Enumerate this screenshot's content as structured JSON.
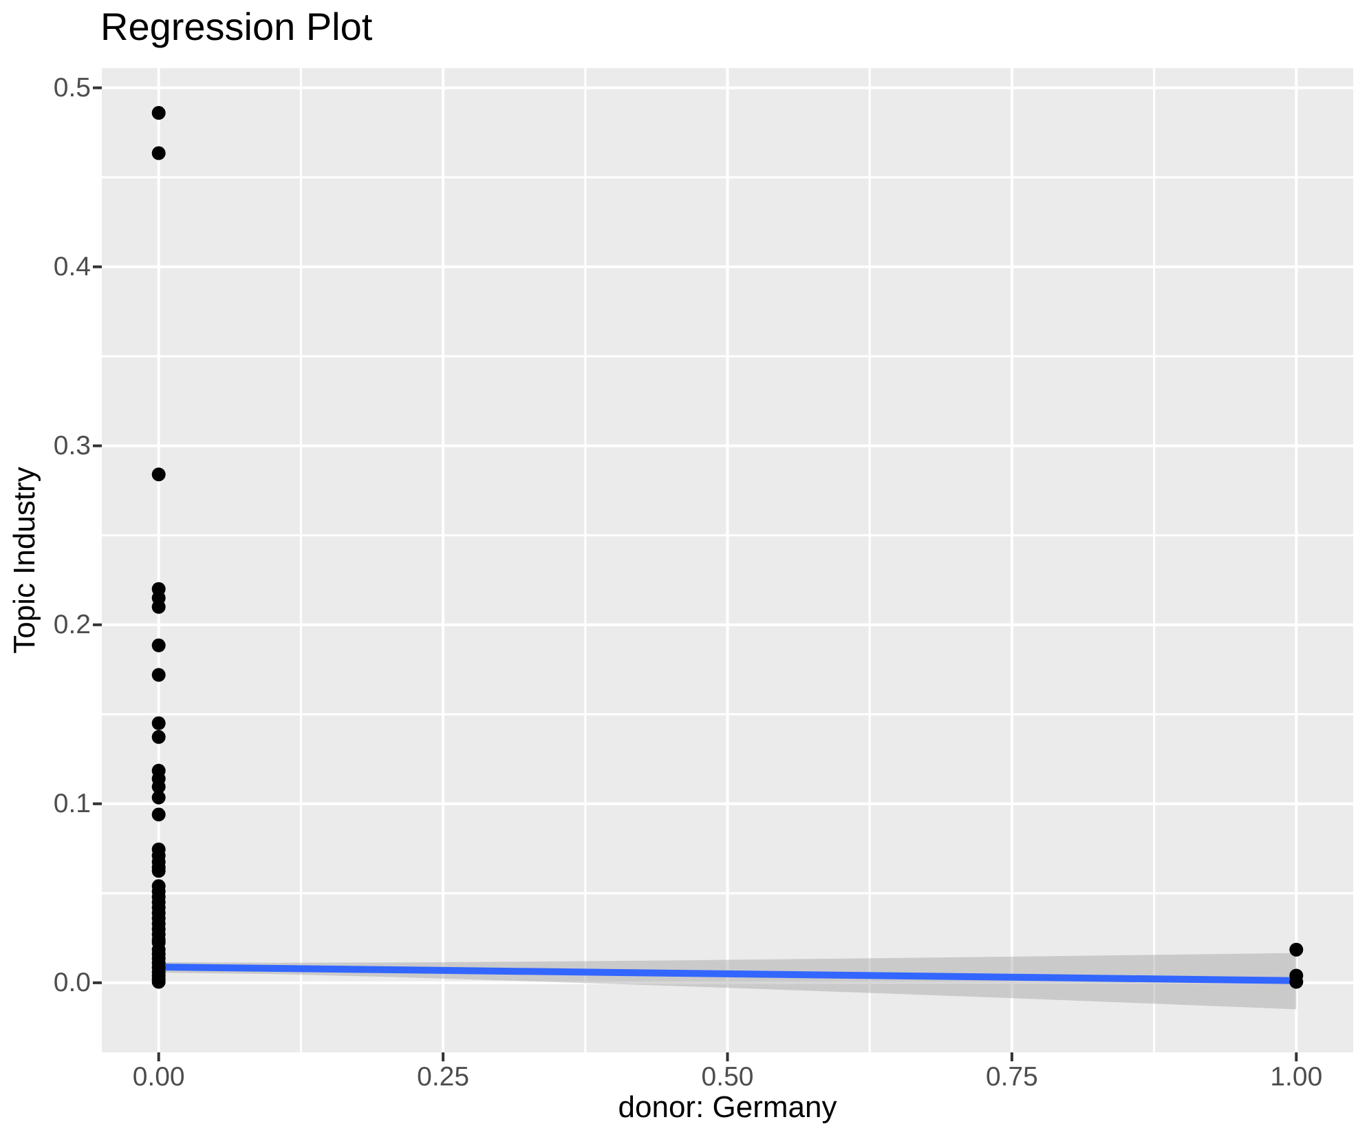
{
  "title": "Regression Plot",
  "chart_data": {
    "type": "scatter",
    "title": "Regression Plot",
    "xlabel": "donor: Germany",
    "ylabel": "Topic Industry",
    "xlim": [
      -0.05,
      1.05
    ],
    "ylim": [
      -0.0389,
      0.511
    ],
    "grid": "major and minor, white on gray panel",
    "legend": "none",
    "x_ticks": {
      "values": [
        0,
        0.25,
        0.5,
        0.75,
        1.0
      ],
      "labels": [
        "0.00",
        "0.25",
        "0.50",
        "0.75",
        "1.00"
      ]
    },
    "y_ticks": {
      "values": [
        0,
        0.1,
        0.2,
        0.3,
        0.4,
        0.5
      ],
      "labels": [
        "0.0",
        "0.1",
        "0.2",
        "0.3",
        "0.4",
        "0.5"
      ]
    },
    "x_minor_ticks": [
      0.125,
      0.375,
      0.625,
      0.875
    ],
    "y_minor_ticks": [
      0.05,
      0.15,
      0.25,
      0.35,
      0.45
    ],
    "points": [
      [
        0,
        0.486
      ],
      [
        0,
        0.4635
      ],
      [
        0,
        0.284
      ],
      [
        0,
        0.22
      ],
      [
        0,
        0.215
      ],
      [
        0,
        0.21
      ],
      [
        0,
        0.1885
      ],
      [
        0,
        0.172
      ],
      [
        0,
        0.145
      ],
      [
        0,
        0.1373
      ],
      [
        0,
        0.1185
      ],
      [
        0,
        0.114
      ],
      [
        0,
        0.1095
      ],
      [
        0,
        0.1035
      ],
      [
        0,
        0.094
      ],
      [
        0,
        0.0745
      ],
      [
        0,
        0.071
      ],
      [
        0,
        0.0675
      ],
      [
        0,
        0.0645
      ],
      [
        0,
        0.0625
      ],
      [
        0,
        0.054
      ],
      [
        0,
        0.051
      ],
      [
        0,
        0.048
      ],
      [
        0,
        0.045
      ],
      [
        0,
        0.042
      ],
      [
        0,
        0.039
      ],
      [
        0,
        0.036
      ],
      [
        0,
        0.033
      ],
      [
        0,
        0.03
      ],
      [
        0,
        0.027
      ],
      [
        0,
        0.024
      ],
      [
        0,
        0.0225
      ],
      [
        0,
        0.0185
      ],
      [
        0,
        0.016
      ],
      [
        0,
        0.0135
      ],
      [
        0,
        0.011
      ],
      [
        0,
        0.0085
      ],
      [
        0,
        0.006
      ],
      [
        0,
        0.004
      ],
      [
        0,
        0.002
      ],
      [
        0,
        0.0005
      ],
      [
        1,
        0.0185
      ],
      [
        1,
        0.004
      ],
      [
        1,
        0.0005
      ]
    ],
    "regression_line": {
      "x0": 0,
      "y0": 0.0088,
      "x1": 1,
      "y1": 0.0012
    },
    "ci_band": {
      "x": [
        0,
        0.1,
        0.2,
        0.3,
        0.4,
        0.5,
        0.6,
        0.7,
        0.8,
        0.9,
        1.0
      ],
      "upper": [
        0.0115,
        0.0112,
        0.0113,
        0.0117,
        0.0122,
        0.0128,
        0.0135,
        0.0142,
        0.015,
        0.0158,
        0.0166
      ],
      "lower": [
        0.0056,
        0.0049,
        0.0033,
        0.0014,
        -0.0007,
        -0.0028,
        -0.0051,
        -0.0074,
        -0.0098,
        -0.0123,
        -0.0148
      ]
    },
    "colors": {
      "panel_bg": "#EBEBEB",
      "grid": "#FFFFFF",
      "point": "#000000",
      "line": "#3366FF",
      "band": "rgba(153,153,153,0.40)",
      "tick": "#333333",
      "tick_label": "#4D4D4D",
      "text": "#000000"
    }
  }
}
